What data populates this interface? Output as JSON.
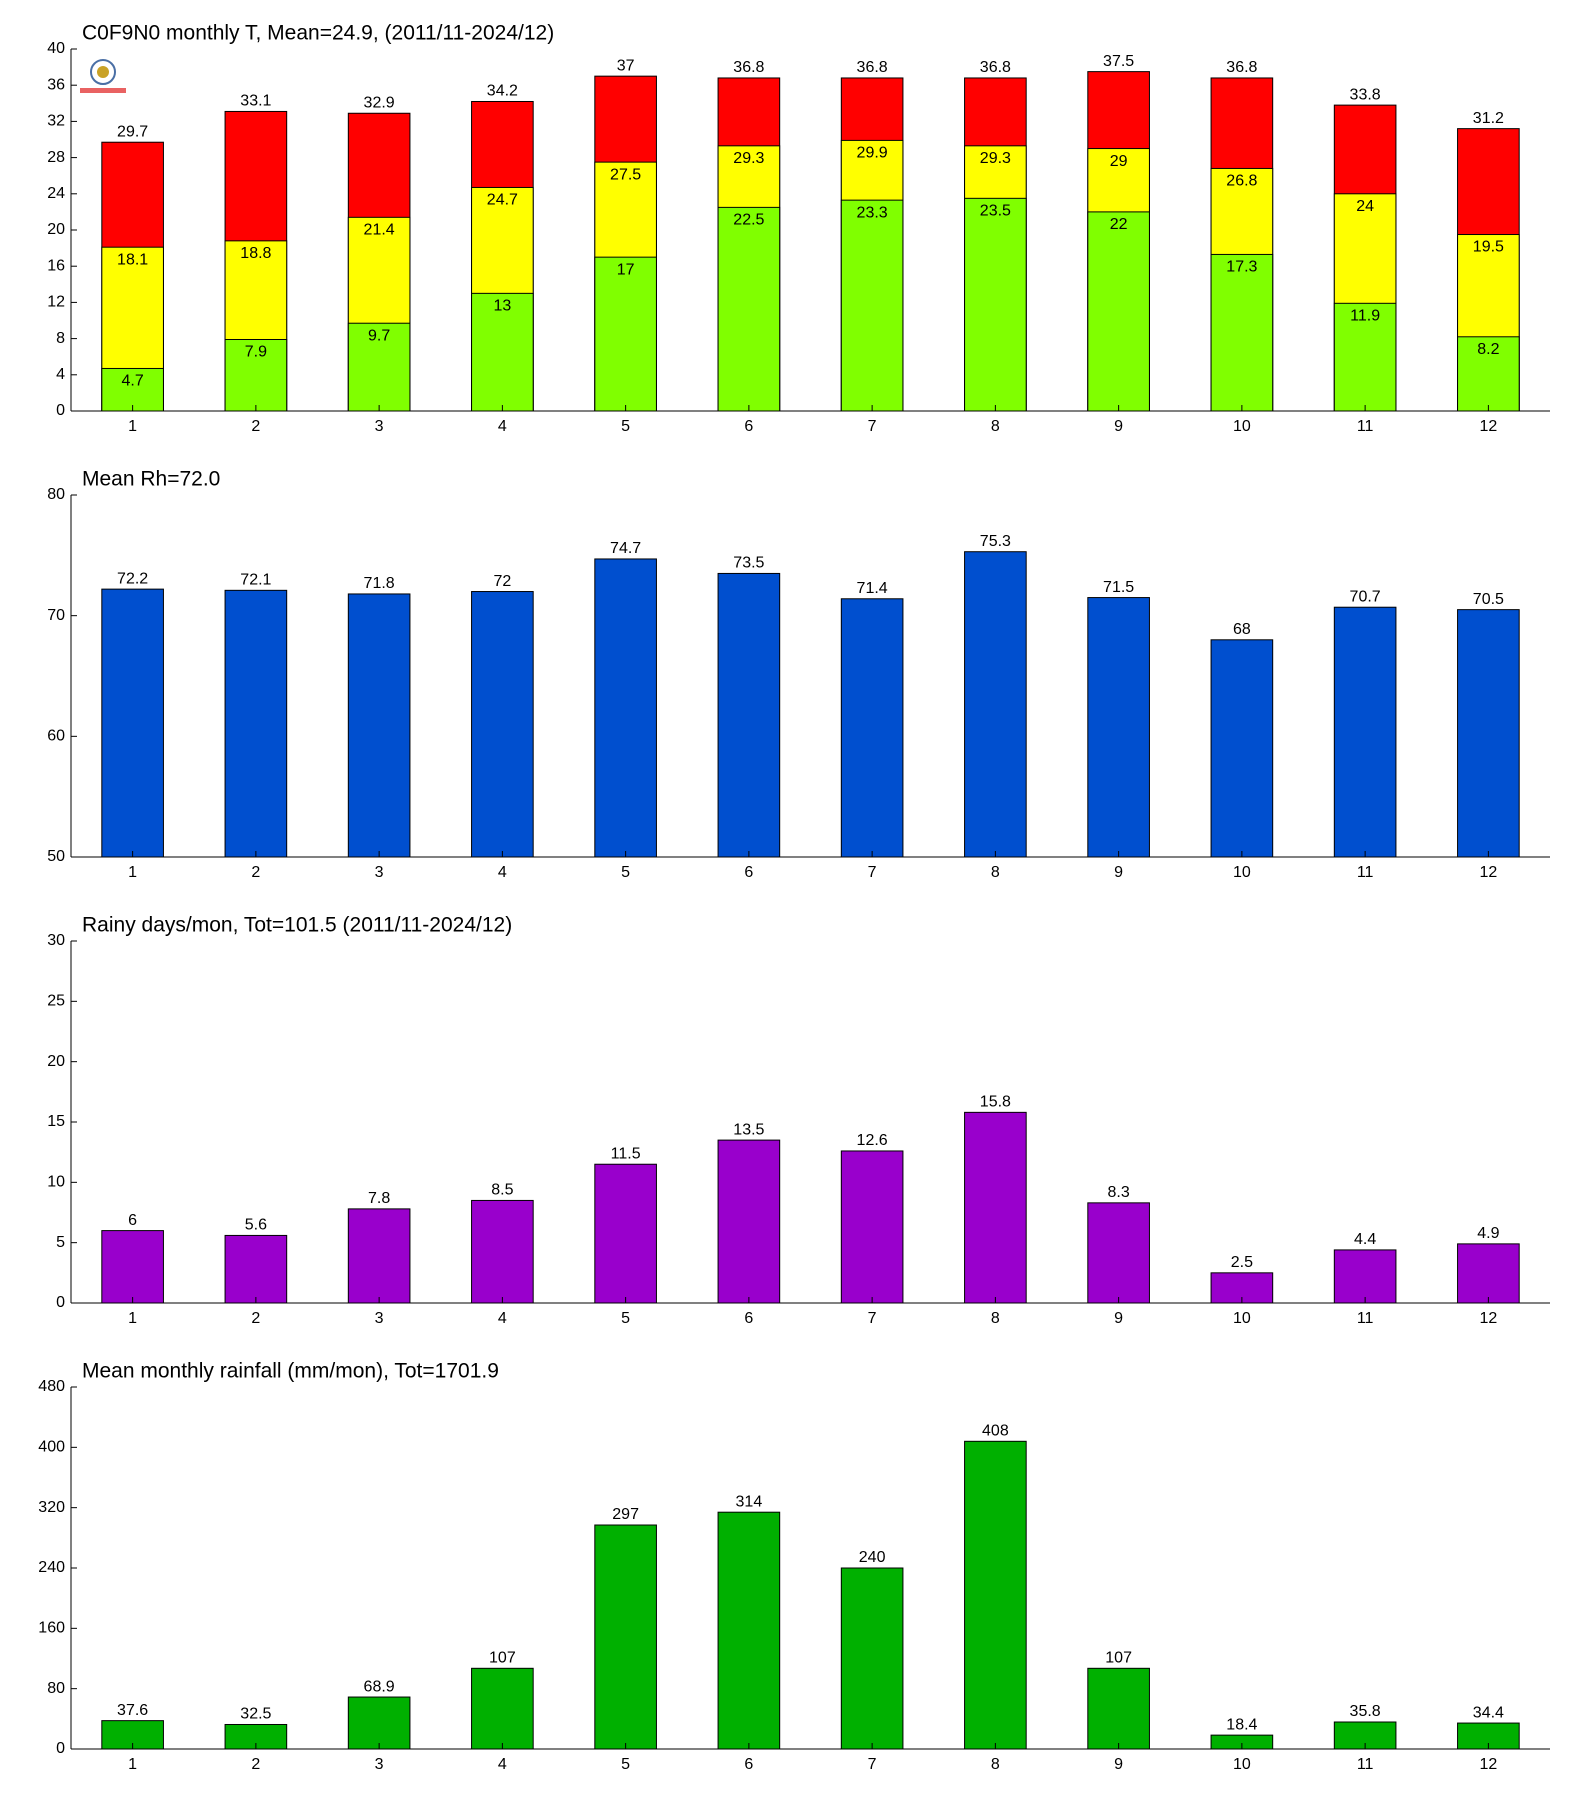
{
  "chart_data": [
    {
      "type": "bar",
      "title": "C0F9N0 monthly T, Mean=24.9, (2011/11-2024/12)",
      "categories": [
        "1",
        "2",
        "3",
        "4",
        "5",
        "6",
        "7",
        "8",
        "9",
        "10",
        "11",
        "12"
      ],
      "series": [
        {
          "color": "#ff0000",
          "values": [
            29.7,
            33.1,
            32.9,
            34.2,
            37,
            36.8,
            36.8,
            36.8,
            37.5,
            36.8,
            33.8,
            31.2
          ]
        },
        {
          "color": "#ffff00",
          "values": [
            18.1,
            18.8,
            21.4,
            24.7,
            27.5,
            29.3,
            29.9,
            29.3,
            29,
            26.8,
            24,
            19.5
          ]
        },
        {
          "color": "#80ff00",
          "values": [
            4.7,
            7.9,
            9.7,
            13,
            17,
            22.5,
            23.3,
            23.5,
            22,
            17.3,
            11.9,
            8.2
          ]
        }
      ],
      "ylim": [
        0,
        40
      ],
      "yticks": [
        0,
        4,
        8,
        12,
        16,
        20,
        24,
        28,
        32,
        36,
        40
      ]
    },
    {
      "type": "bar",
      "title": "Mean Rh=72.0",
      "categories": [
        "1",
        "2",
        "3",
        "4",
        "5",
        "6",
        "7",
        "8",
        "9",
        "10",
        "11",
        "12"
      ],
      "series": [
        {
          "color": "#004fcf",
          "values": [
            72.2,
            72.1,
            71.8,
            72,
            74.7,
            73.5,
            71.4,
            75.3,
            71.5,
            68,
            70.7,
            70.5
          ]
        }
      ],
      "ylim": [
        50,
        80
      ],
      "yticks": [
        50,
        60,
        70,
        80
      ]
    },
    {
      "type": "bar",
      "title": "Rainy days/mon, Tot=101.5 (2011/11-2024/12)",
      "categories": [
        "1",
        "2",
        "3",
        "4",
        "5",
        "6",
        "7",
        "8",
        "9",
        "10",
        "11",
        "12"
      ],
      "series": [
        {
          "color": "#9900cc",
          "values": [
            6,
            5.6,
            7.8,
            8.5,
            11.5,
            13.5,
            12.6,
            15.8,
            8.3,
            2.5,
            4.4,
            4.9
          ]
        }
      ],
      "ylim": [
        0,
        30
      ],
      "yticks": [
        0,
        5,
        10,
        15,
        20,
        25,
        30
      ]
    },
    {
      "type": "bar",
      "title": "Mean monthly rainfall (mm/mon), Tot=1701.9",
      "categories": [
        "1",
        "2",
        "3",
        "4",
        "5",
        "6",
        "7",
        "8",
        "9",
        "10",
        "11",
        "12"
      ],
      "series": [
        {
          "color": "#00b000",
          "values": [
            37.6,
            32.5,
            68.9,
            107,
            297,
            314,
            240,
            408,
            107,
            18.4,
            35.8,
            34.4
          ]
        }
      ],
      "ylim": [
        0,
        480
      ],
      "yticks": [
        0,
        80,
        160,
        240,
        320,
        400,
        480
      ]
    }
  ]
}
